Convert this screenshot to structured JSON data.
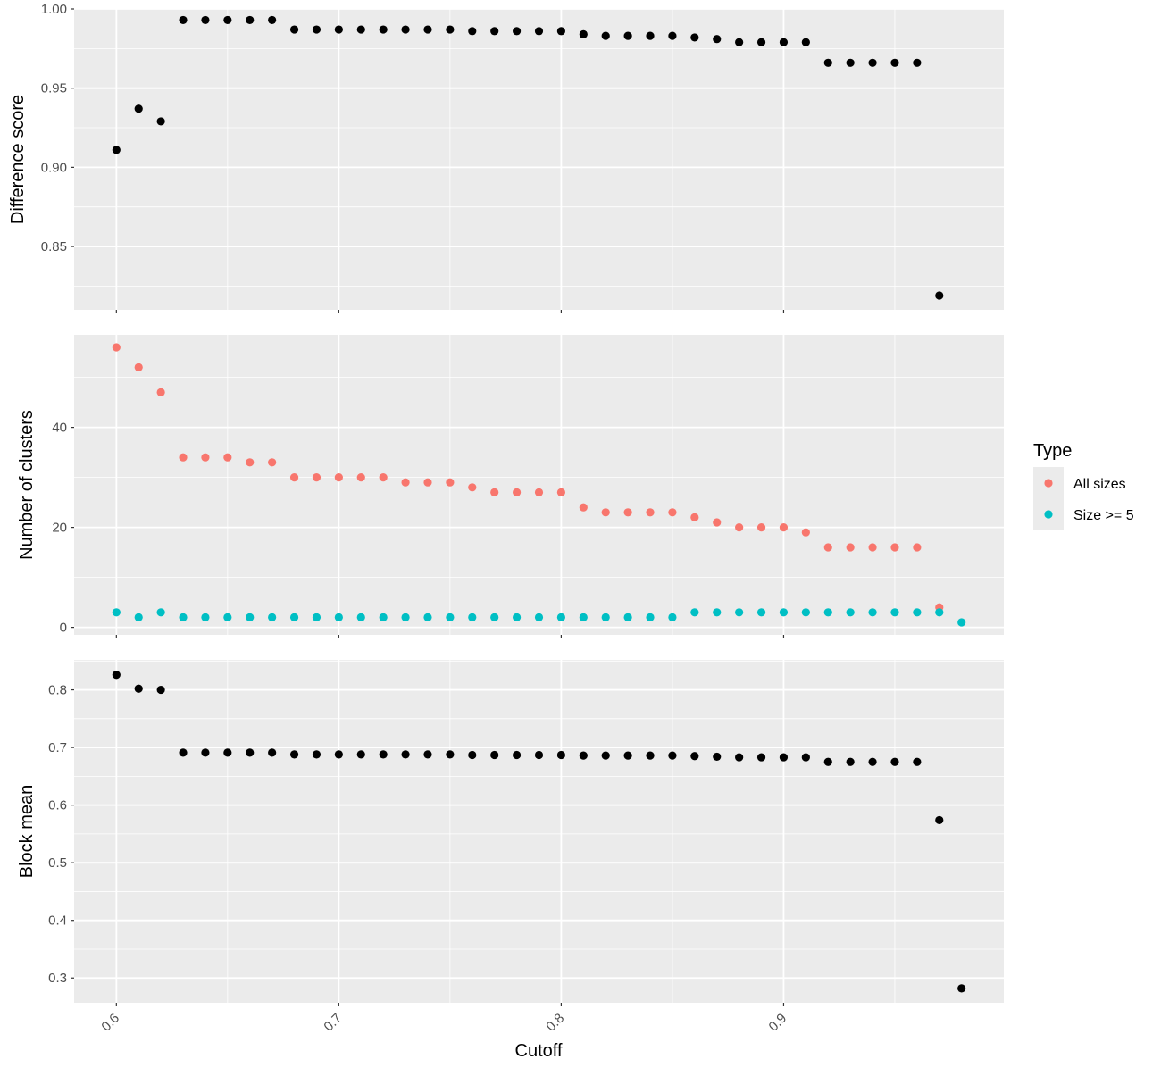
{
  "chart_data": {
    "type": "scatter",
    "facets": "3 vertically stacked panels sharing the x axis",
    "x_axis": {
      "label": "Cutoff",
      "range": [
        0.581,
        0.999
      ],
      "ticks": [
        0.6,
        0.7,
        0.8,
        0.9
      ],
      "tick_labels": [
        "0.6",
        "0.7",
        "0.8",
        "0.9"
      ],
      "tick_label_rotation": "45 degrees"
    },
    "colors": {
      "panel_background": "#ebebeb",
      "grid": "#ffffff",
      "points_default": "#000000",
      "all_sizes": "#f8766d",
      "size_ge_5": "#00bfc4"
    },
    "legend": {
      "title": "Type",
      "placement": "right",
      "entries": [
        {
          "label": "All sizes",
          "color": "#f8766d"
        },
        {
          "label": "Size >= 5",
          "color": "#00bfc4"
        }
      ]
    },
    "panels": [
      {
        "ylabel": "Difference score",
        "ylim": [
          0.81,
          1.0
        ],
        "yticks": [
          0.85,
          0.9,
          0.95,
          1.0
        ],
        "ytick_labels": [
          "0.85",
          "0.90",
          "0.95",
          "1.00"
        ],
        "series": [
          {
            "color": "#000000",
            "x": [
              0.6,
              0.61,
              0.62,
              0.63,
              0.64,
              0.65,
              0.66,
              0.67,
              0.68,
              0.69,
              0.7,
              0.71,
              0.72,
              0.73,
              0.74,
              0.75,
              0.76,
              0.77,
              0.78,
              0.79,
              0.8,
              0.81,
              0.82,
              0.83,
              0.84,
              0.85,
              0.86,
              0.87,
              0.88,
              0.89,
              0.9,
              0.91,
              0.92,
              0.93,
              0.94,
              0.95,
              0.96,
              0.97
            ],
            "y": [
              0.911,
              0.937,
              0.929,
              0.993,
              0.993,
              0.993,
              0.993,
              0.993,
              0.987,
              0.987,
              0.987,
              0.987,
              0.987,
              0.987,
              0.987,
              0.987,
              0.986,
              0.986,
              0.986,
              0.986,
              0.986,
              0.984,
              0.983,
              0.983,
              0.983,
              0.983,
              0.982,
              0.981,
              0.979,
              0.979,
              0.979,
              0.979,
              0.966,
              0.966,
              0.966,
              0.966,
              0.966,
              0.819
            ]
          }
        ]
      },
      {
        "ylabel": "Number of clusters",
        "ylim": [
          -1.5,
          58.5
        ],
        "yticks": [
          0,
          20,
          40
        ],
        "ytick_labels": [
          "0",
          "20",
          "40"
        ],
        "series": [
          {
            "name": "All sizes",
            "color": "#f8766d",
            "x": [
              0.6,
              0.61,
              0.62,
              0.63,
              0.64,
              0.65,
              0.66,
              0.67,
              0.68,
              0.69,
              0.7,
              0.71,
              0.72,
              0.73,
              0.74,
              0.75,
              0.76,
              0.77,
              0.78,
              0.79,
              0.8,
              0.81,
              0.82,
              0.83,
              0.84,
              0.85,
              0.86,
              0.87,
              0.88,
              0.89,
              0.9,
              0.91,
              0.92,
              0.93,
              0.94,
              0.95,
              0.96,
              0.97
            ],
            "y": [
              56,
              52,
              47,
              34,
              34,
              34,
              33,
              33,
              30,
              30,
              30,
              30,
              30,
              29,
              29,
              29,
              28,
              27,
              27,
              27,
              27,
              24,
              23,
              23,
              23,
              23,
              22,
              21,
              20,
              20,
              20,
              19,
              16,
              16,
              16,
              16,
              16,
              4
            ]
          },
          {
            "name": "Size >= 5",
            "color": "#00bfc4",
            "x": [
              0.6,
              0.61,
              0.62,
              0.63,
              0.64,
              0.65,
              0.66,
              0.67,
              0.68,
              0.69,
              0.7,
              0.71,
              0.72,
              0.73,
              0.74,
              0.75,
              0.76,
              0.77,
              0.78,
              0.79,
              0.8,
              0.81,
              0.82,
              0.83,
              0.84,
              0.85,
              0.86,
              0.87,
              0.88,
              0.89,
              0.9,
              0.91,
              0.92,
              0.93,
              0.94,
              0.95,
              0.96,
              0.97,
              0.98
            ],
            "y": [
              3,
              2,
              3,
              2,
              2,
              2,
              2,
              2,
              2,
              2,
              2,
              2,
              2,
              2,
              2,
              2,
              2,
              2,
              2,
              2,
              2,
              2,
              2,
              2,
              2,
              2,
              3,
              3,
              3,
              3,
              3,
              3,
              3,
              3,
              3,
              3,
              3,
              3,
              1
            ]
          }
        ]
      },
      {
        "ylabel": "Block mean",
        "ylim": [
          0.257,
          0.852
        ],
        "yticks": [
          0.3,
          0.4,
          0.5,
          0.6,
          0.7,
          0.8
        ],
        "ytick_labels": [
          "0.3",
          "0.4",
          "0.5",
          "0.6",
          "0.7",
          "0.8"
        ],
        "series": [
          {
            "color": "#000000",
            "x": [
              0.6,
              0.61,
              0.62,
              0.63,
              0.64,
              0.65,
              0.66,
              0.67,
              0.68,
              0.69,
              0.7,
              0.71,
              0.72,
              0.73,
              0.74,
              0.75,
              0.76,
              0.77,
              0.78,
              0.79,
              0.8,
              0.81,
              0.82,
              0.83,
              0.84,
              0.85,
              0.86,
              0.87,
              0.88,
              0.89,
              0.9,
              0.91,
              0.92,
              0.93,
              0.94,
              0.95,
              0.96,
              0.97,
              0.98
            ],
            "y": [
              0.826,
              0.802,
              0.8,
              0.691,
              0.691,
              0.691,
              0.691,
              0.691,
              0.688,
              0.688,
              0.688,
              0.688,
              0.688,
              0.688,
              0.688,
              0.688,
              0.687,
              0.687,
              0.687,
              0.687,
              0.687,
              0.686,
              0.686,
              0.686,
              0.686,
              0.686,
              0.685,
              0.684,
              0.683,
              0.683,
              0.683,
              0.683,
              0.675,
              0.675,
              0.675,
              0.675,
              0.675,
              0.574,
              0.282
            ]
          }
        ]
      }
    ]
  }
}
